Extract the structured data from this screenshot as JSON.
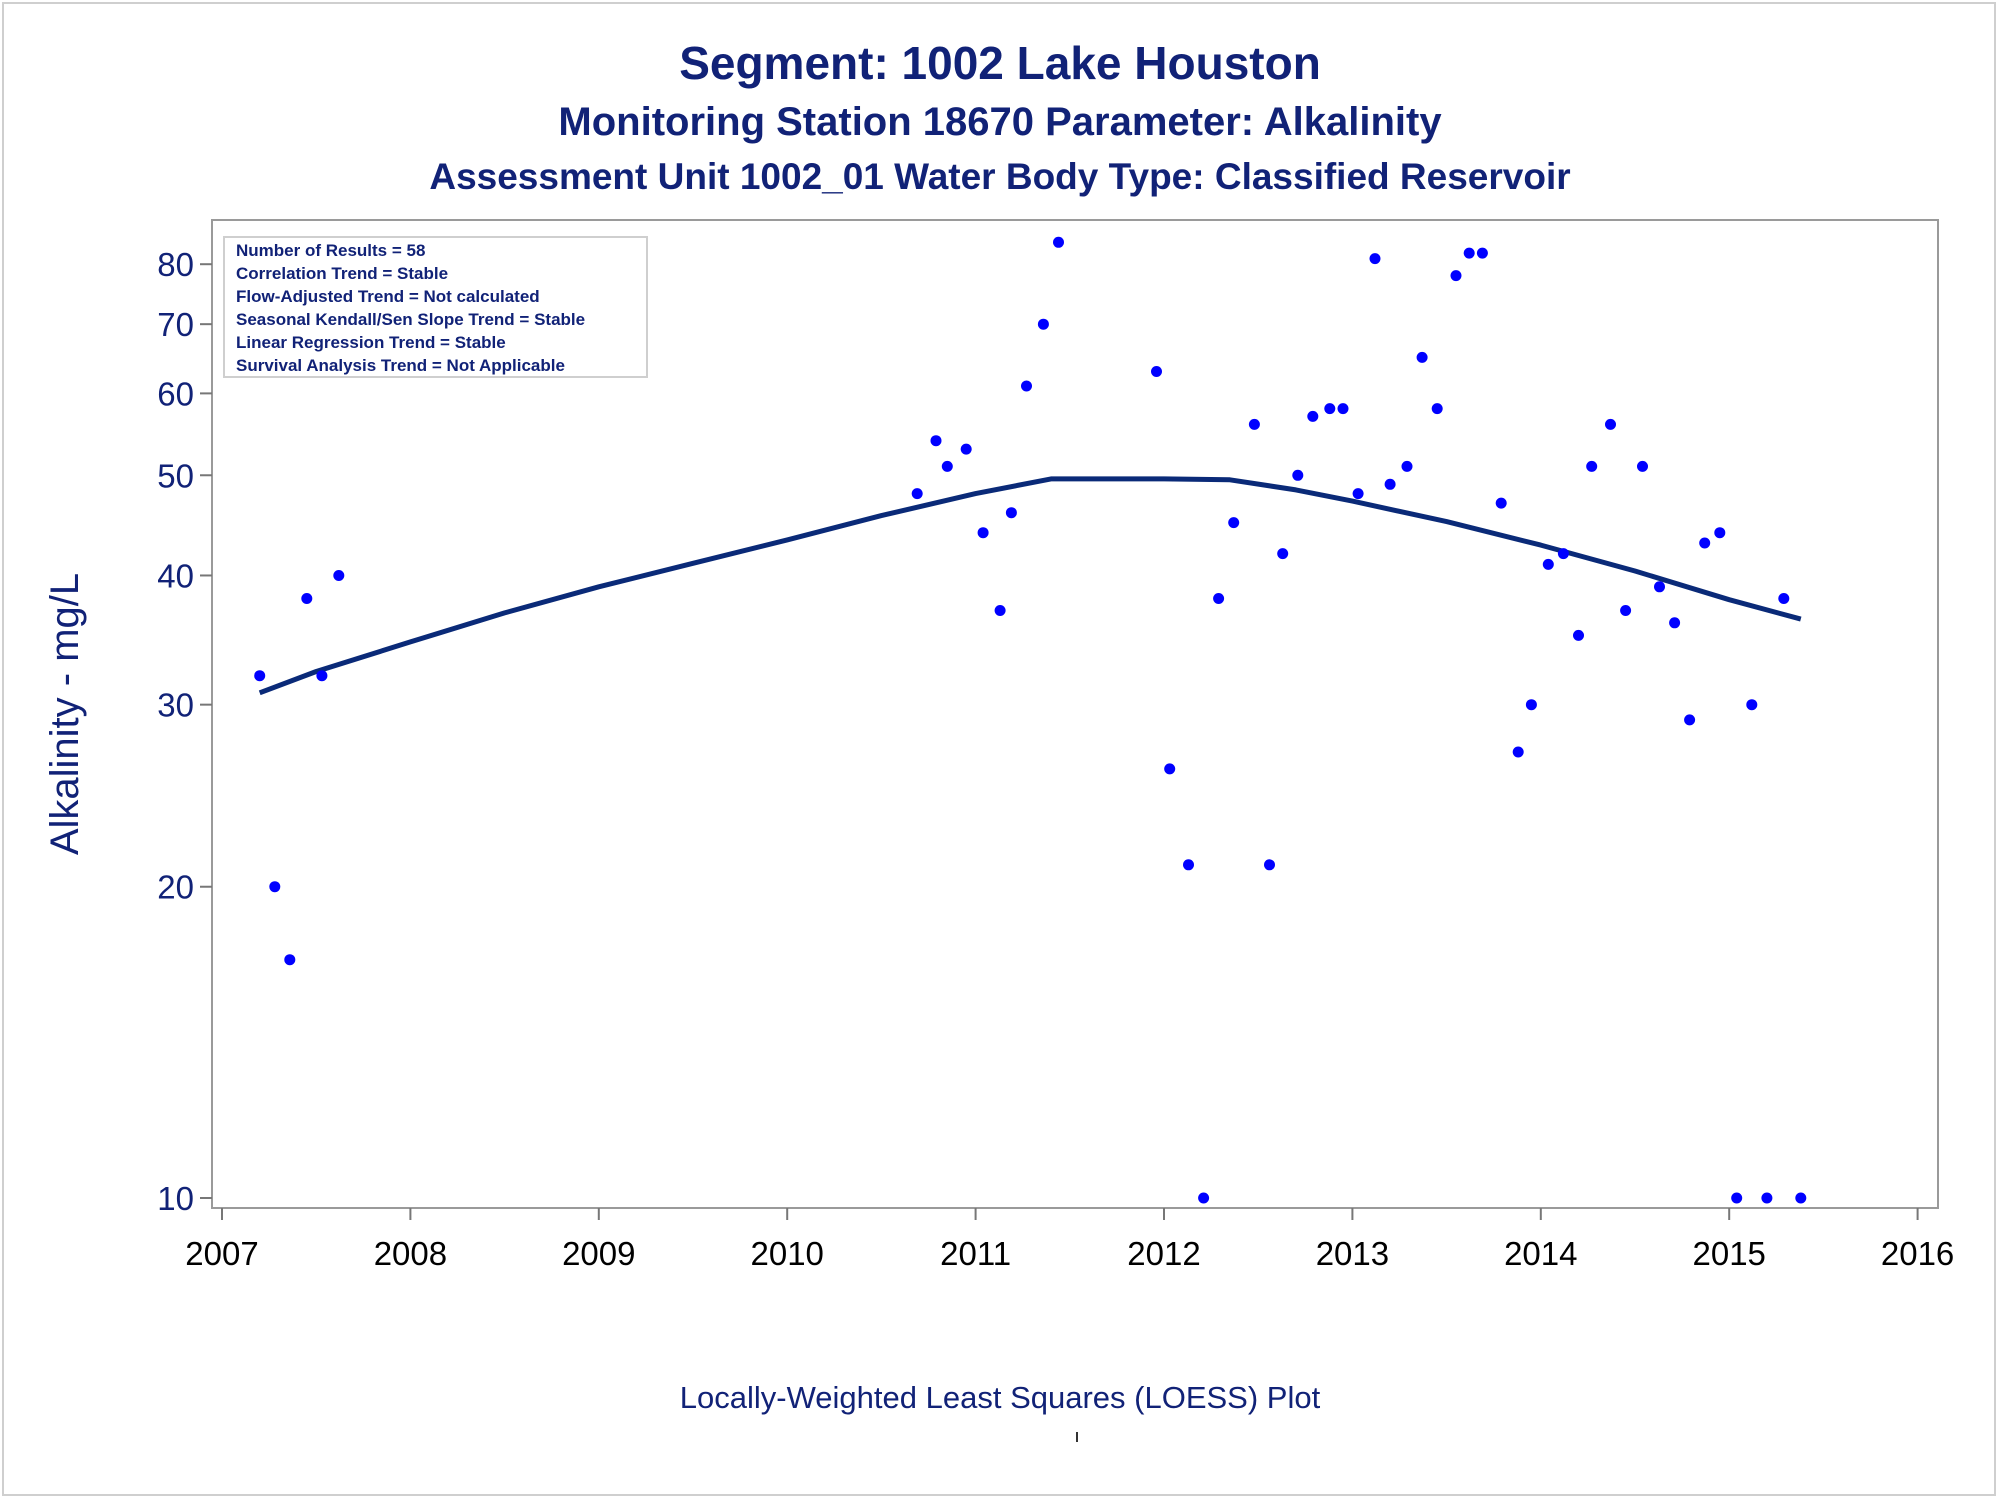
{
  "titles": {
    "line1": "Segment: 1002  Lake Houston",
    "line2": "Monitoring Station 18670 Parameter: Alkalinity",
    "line3": "Assessment Unit 1002_01   Water Body Type: Classified Reservoir"
  },
  "footnote": "Locally-Weighted Least Squares (LOESS) Plot",
  "stats_box": [
    "Number of Results = 58",
    "Correlation Trend = Stable",
    "Flow-Adjusted Trend = Not calculated",
    "Seasonal Kendall/Sen Slope Trend = Stable",
    "Linear Regression Trend = Stable",
    "Survival Analysis Trend = Not Applicable"
  ],
  "colors": {
    "points": "#0000ff",
    "loess": "#0a2a78",
    "text": "#112277"
  },
  "chart_data": {
    "type": "scatter",
    "xlabel": "",
    "ylabel": "Alkalinity - mg/L",
    "y_scale": "log",
    "xlim": [
      2007,
      2016
    ],
    "ylim": [
      10,
      85
    ],
    "x_ticks": [
      2007,
      2008,
      2009,
      2010,
      2011,
      2012,
      2013,
      2014,
      2015,
      2016
    ],
    "y_ticks": [
      10,
      20,
      30,
      40,
      50,
      60,
      70,
      80
    ],
    "grid": false,
    "series": [
      {
        "type": "scatter",
        "x": [
          2007.2,
          2007.28,
          2007.36,
          2007.45,
          2007.53,
          2007.62,
          2010.69,
          2010.79,
          2010.85,
          2010.95,
          2011.04,
          2011.13,
          2011.19,
          2011.27,
          2011.36,
          2011.44,
          2011.96,
          2012.03,
          2012.13,
          2012.21,
          2012.29,
          2012.37,
          2012.48,
          2012.56,
          2012.63,
          2012.71,
          2012.79,
          2012.88,
          2012.95,
          2013.03,
          2013.12,
          2013.2,
          2013.29,
          2013.37,
          2013.45,
          2013.55,
          2013.62,
          2013.69,
          2013.79,
          2013.88,
          2013.95,
          2014.04,
          2014.12,
          2014.2,
          2014.27,
          2014.37,
          2014.45,
          2014.54,
          2014.63,
          2014.71,
          2014.79,
          2014.87,
          2014.95,
          2015.04,
          2015.12,
          2015.2,
          2015.29,
          2015.38
        ],
        "y": [
          32,
          20,
          17,
          38,
          32,
          40,
          48,
          54,
          51,
          53,
          44,
          37,
          46,
          61,
          70,
          84,
          63,
          26,
          21,
          10,
          38,
          45,
          56,
          21,
          42,
          50,
          57,
          58,
          58,
          48,
          81,
          49,
          51,
          65,
          58,
          78,
          82,
          82,
          47,
          27,
          30,
          41,
          42,
          35,
          51,
          56,
          37,
          51,
          39,
          36,
          29,
          43,
          44,
          10,
          30,
          10,
          38,
          10
        ]
      },
      {
        "type": "line",
        "x": [
          2007.2,
          2007.5,
          2008.0,
          2008.5,
          2009.0,
          2009.5,
          2010.0,
          2010.5,
          2011.0,
          2011.4,
          2012.0,
          2012.35,
          2012.7,
          2013.0,
          2013.5,
          2014.0,
          2014.5,
          2015.0,
          2015.38
        ],
        "y": [
          30.8,
          32.3,
          34.5,
          36.8,
          39.0,
          41.1,
          43.3,
          45.7,
          48.0,
          49.6,
          49.6,
          49.5,
          48.4,
          47.2,
          45.1,
          42.8,
          40.4,
          37.9,
          36.3
        ]
      }
    ]
  }
}
